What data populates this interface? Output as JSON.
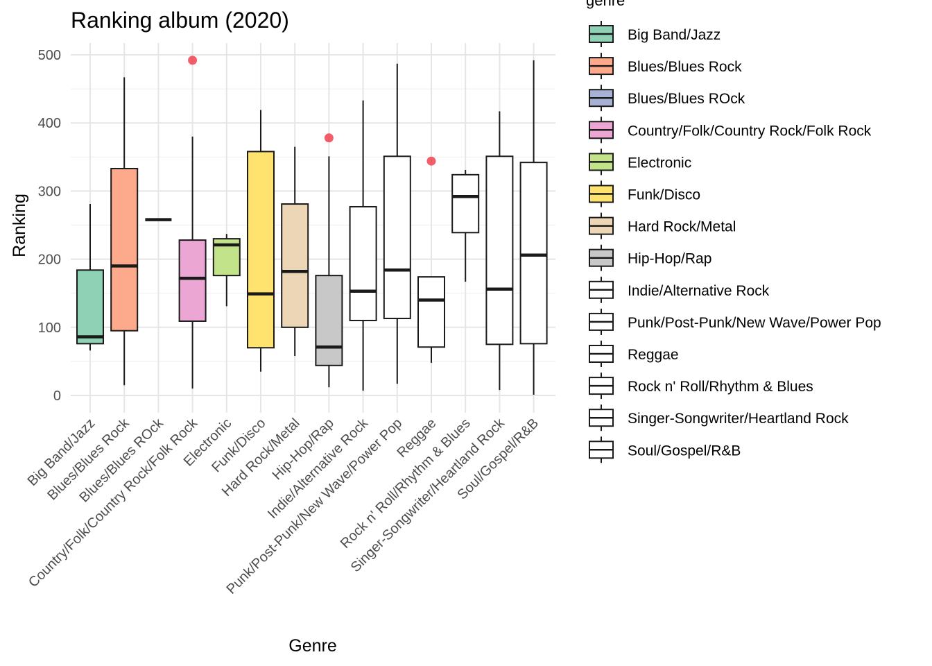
{
  "chart_data": {
    "type": "boxplot",
    "title": "Ranking album (2020)",
    "xlabel": "Genre",
    "ylabel": "Ranking",
    "ylim": [
      -25,
      520
    ],
    "yticks": [
      0,
      100,
      200,
      300,
      400,
      500
    ],
    "grid": true,
    "legend_title": "genre",
    "legend_position": "right",
    "outlier_color": "#f0424f",
    "categories": [
      {
        "name": "Big Band/Jazz",
        "color": "#8fd1b5",
        "min": 66,
        "q1": 76,
        "median": 86,
        "q3": 184,
        "max": 281,
        "outliers": []
      },
      {
        "name": "Blues/Blues Rock",
        "color": "#fca98c",
        "min": 15,
        "q1": 95,
        "median": 190,
        "q3": 333,
        "max": 467,
        "outliers": []
      },
      {
        "name": "Blues/Blues ROck",
        "color": "#a6b1d4",
        "min": 258,
        "q1": 258,
        "median": 258,
        "q3": 258,
        "max": 258,
        "outliers": []
      },
      {
        "name": "Country/Folk/Country Rock/Folk Rock",
        "color": "#eba6d4",
        "min": 10,
        "q1": 109,
        "median": 172,
        "q3": 228,
        "max": 380,
        "outliers": [
          492
        ]
      },
      {
        "name": "Electronic",
        "color": "#c2e389",
        "min": 131,
        "q1": 176,
        "median": 221,
        "q3": 230,
        "max": 237,
        "outliers": []
      },
      {
        "name": "Funk/Disco",
        "color": "#ffe36e",
        "min": 35,
        "q1": 70,
        "median": 149,
        "q3": 358,
        "max": 419,
        "outliers": []
      },
      {
        "name": "Hard Rock/Metal",
        "color": "#ecd6b6",
        "min": 58,
        "q1": 100,
        "median": 182,
        "q3": 281,
        "max": 365,
        "outliers": []
      },
      {
        "name": "Hip-Hop/Rap",
        "color": "#c8c8c8",
        "min": 12,
        "q1": 44,
        "median": 71,
        "q3": 176,
        "max": 351,
        "outliers": [
          378
        ]
      },
      {
        "name": "Indie/Alternative Rock",
        "color": "#ffffff",
        "min": 7,
        "q1": 110,
        "median": 153,
        "q3": 277,
        "max": 433,
        "outliers": []
      },
      {
        "name": "Punk/Post-Punk/New Wave/Power Pop",
        "color": "#ffffff",
        "min": 17,
        "q1": 113,
        "median": 184,
        "q3": 351,
        "max": 487,
        "outliers": []
      },
      {
        "name": "Reggae",
        "color": "#ffffff",
        "min": 48,
        "q1": 71,
        "median": 140,
        "q3": 174,
        "max": 174,
        "outliers": [
          344
        ]
      },
      {
        "name": "Rock n' Roll/Rhythm & Blues",
        "color": "#ffffff",
        "min": 167,
        "q1": 239,
        "median": 292,
        "q3": 324,
        "max": 331,
        "outliers": []
      },
      {
        "name": "Singer-Songwriter/Heartland Rock",
        "color": "#ffffff",
        "min": 8,
        "q1": 75,
        "median": 156,
        "q3": 351,
        "max": 417,
        "outliers": []
      },
      {
        "name": "Soul/Gospel/R&B",
        "color": "#ffffff",
        "min": 1,
        "q1": 76,
        "median": 206,
        "q3": 342,
        "max": 492,
        "outliers": []
      }
    ]
  }
}
